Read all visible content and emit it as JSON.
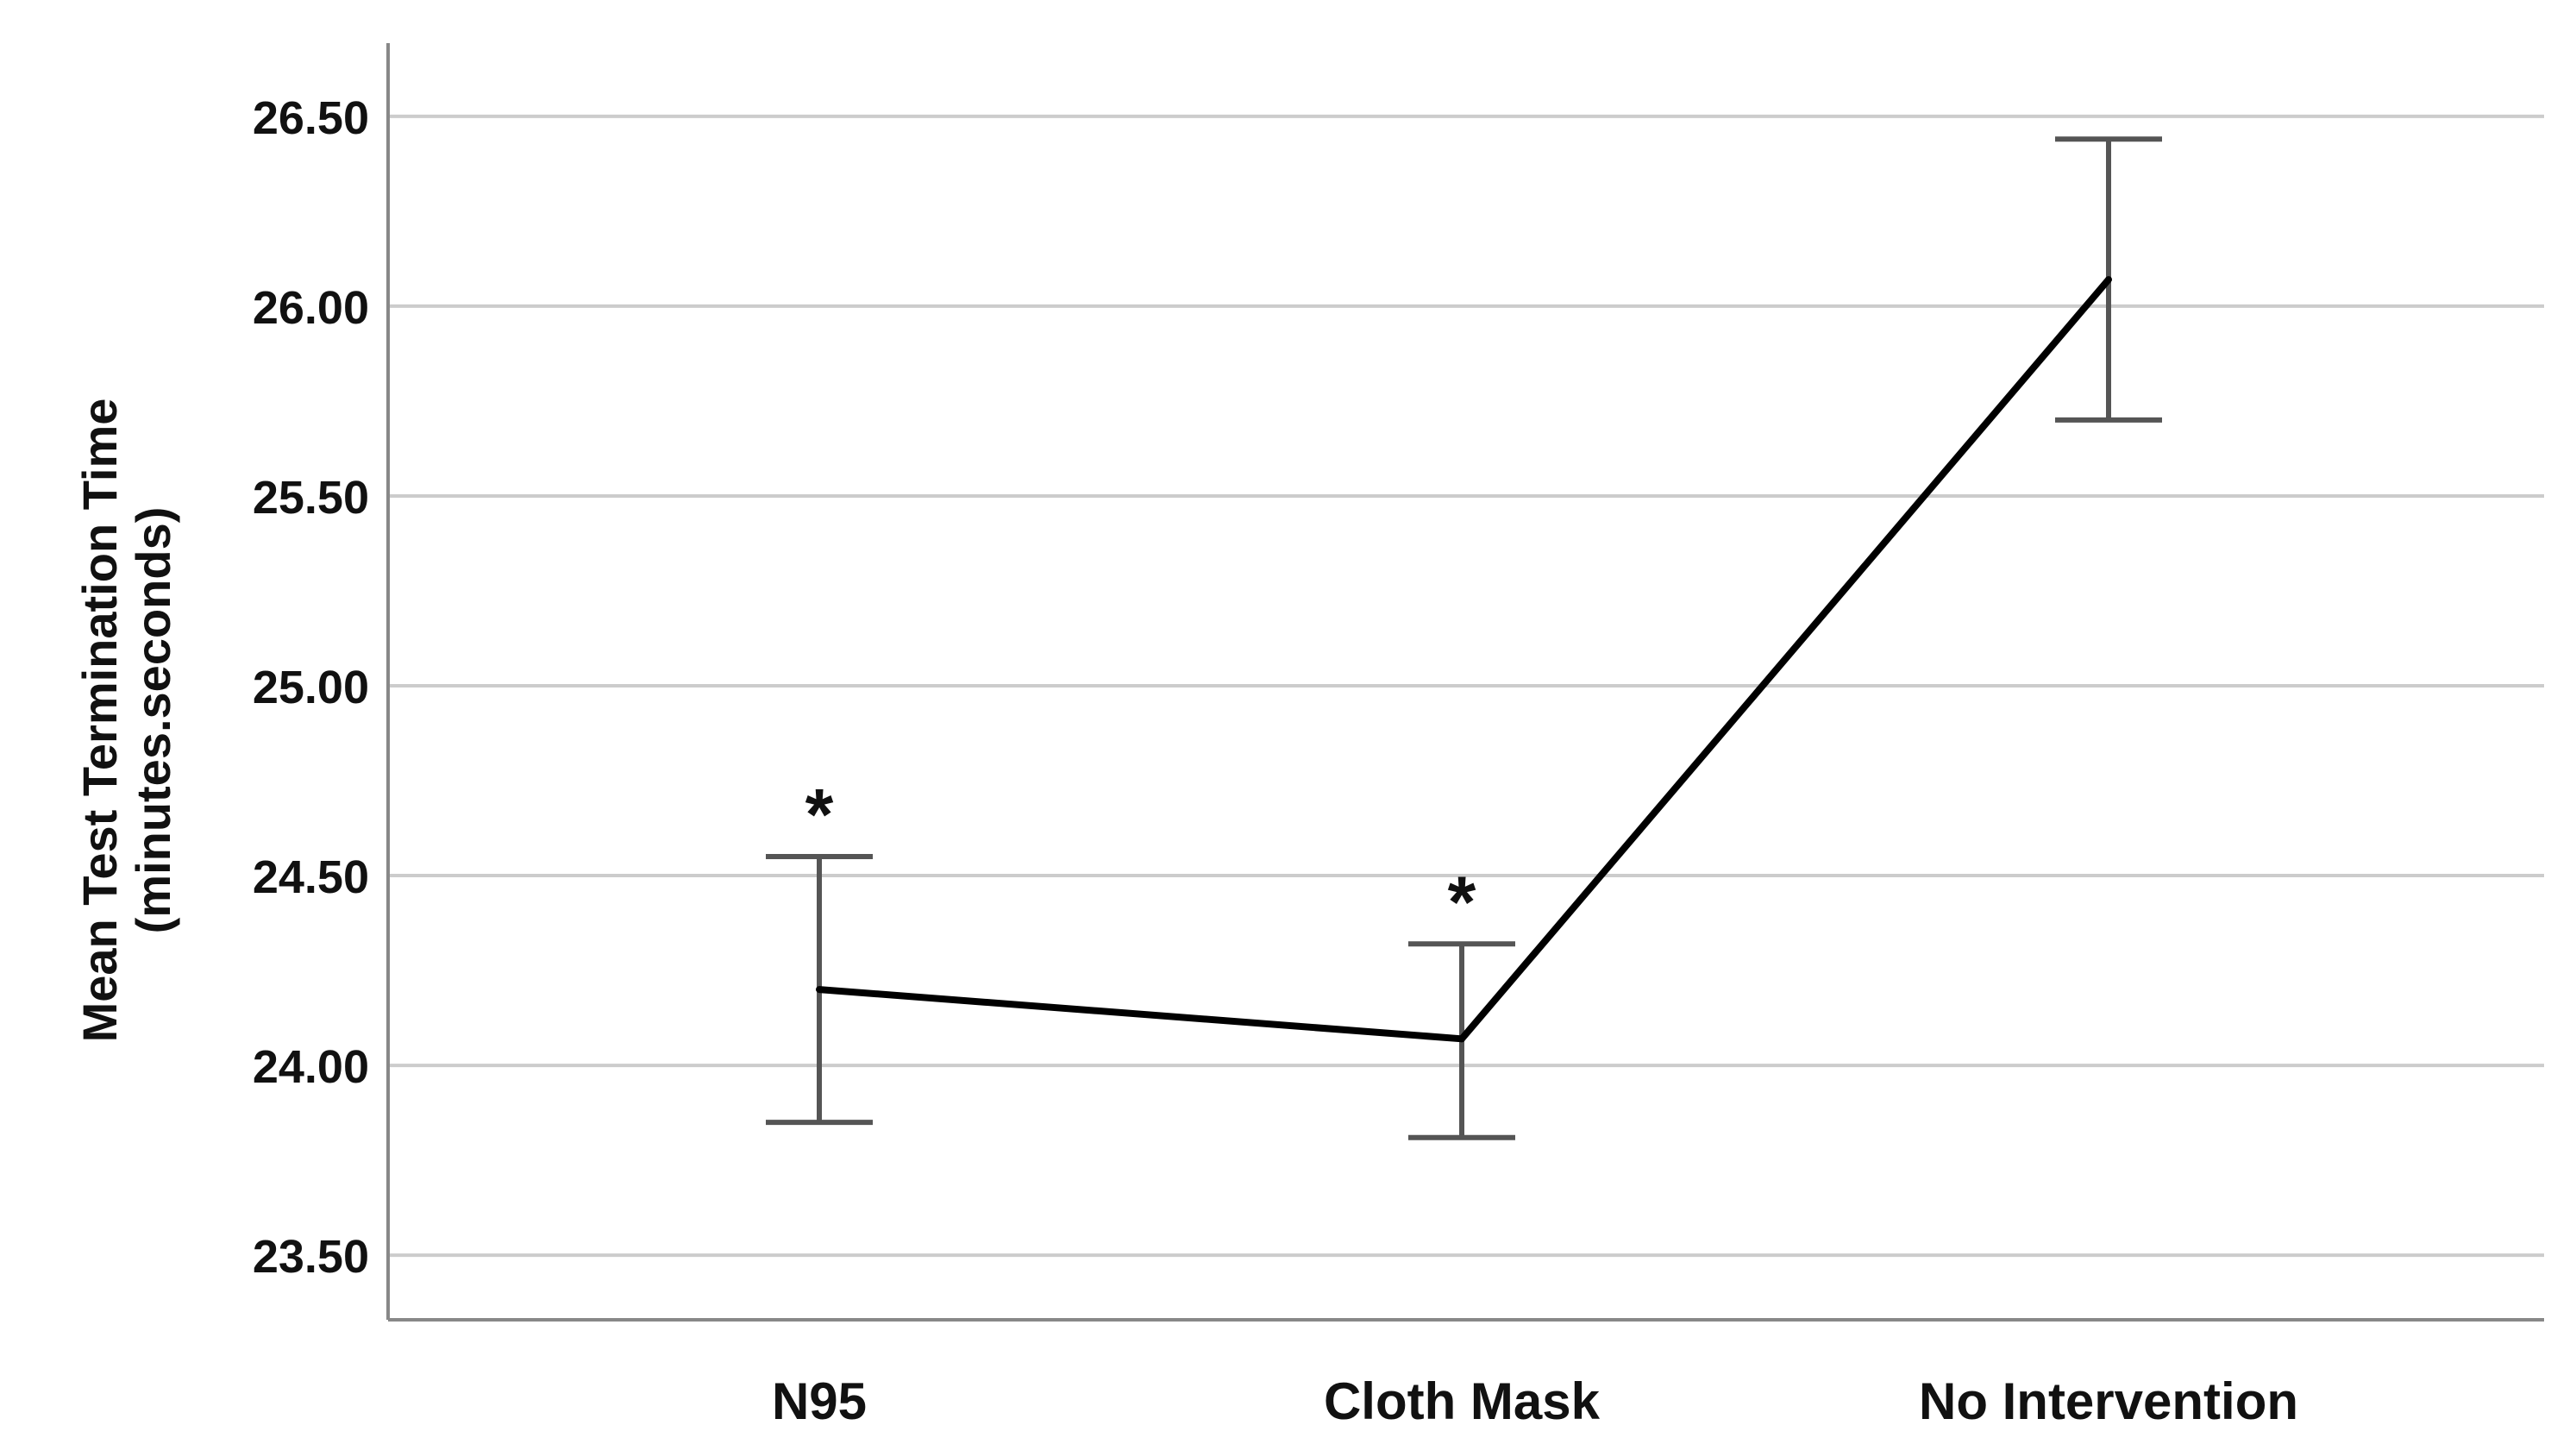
{
  "chart_data": {
    "type": "line",
    "title": "",
    "xlabel": "",
    "ylabel": "Mean Test Termination Time",
    "ylabel_line2": "(minutes.seconds)",
    "categories": [
      "N95",
      "Cloth Mask",
      "No Intervention"
    ],
    "series": [
      {
        "values": [
          24.2,
          24.07,
          26.07
        ],
        "error_low": [
          23.85,
          23.81,
          25.7
        ],
        "error_high": [
          24.55,
          24.32,
          26.44
        ],
        "color": "#000000"
      }
    ],
    "annotations": [
      "*",
      "*",
      ""
    ],
    "ylim": [
      23.33,
      26.67
    ],
    "yticks": [
      "23.50",
      "24.00",
      "24.50",
      "25.00",
      "25.50",
      "26.00",
      "26.50"
    ],
    "grid": true,
    "legend": "none",
    "colors": {
      "line": "#000000",
      "errorbar": "#555555",
      "grid": "#cccccc",
      "axis": "#888888"
    }
  }
}
